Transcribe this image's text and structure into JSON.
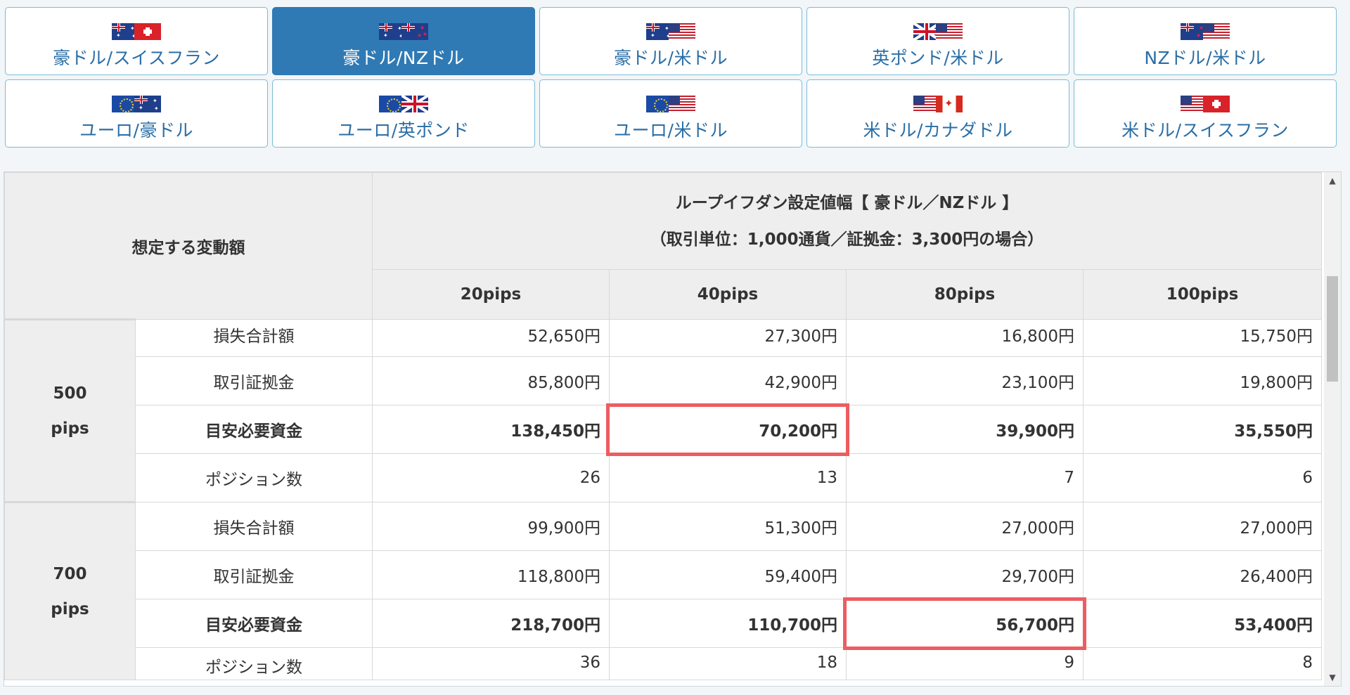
{
  "tabs": [
    {
      "label": "豪ドル/スイスフラン",
      "flags": [
        "au",
        "ch"
      ],
      "active": false
    },
    {
      "label": "豪ドル/NZドル",
      "flags": [
        "au",
        "nz"
      ],
      "active": true
    },
    {
      "label": "豪ドル/米ドル",
      "flags": [
        "au",
        "us"
      ],
      "active": false
    },
    {
      "label": "英ポンド/米ドル",
      "flags": [
        "gb",
        "us"
      ],
      "active": false
    },
    {
      "label": "NZドル/米ドル",
      "flags": [
        "nz",
        "us"
      ],
      "active": false
    },
    {
      "label": "ユーロ/豪ドル",
      "flags": [
        "eu",
        "au"
      ],
      "active": false
    },
    {
      "label": "ユーロ/英ポンド",
      "flags": [
        "eu",
        "gb"
      ],
      "active": false
    },
    {
      "label": "ユーロ/米ドル",
      "flags": [
        "eu",
        "us"
      ],
      "active": false
    },
    {
      "label": "米ドル/カナダドル",
      "flags": [
        "us",
        "ca"
      ],
      "active": false
    },
    {
      "label": "米ドル/スイスフラン",
      "flags": [
        "us",
        "ch"
      ],
      "active": false
    }
  ],
  "table": {
    "corner": "想定する変動額",
    "title_line1": "ループイフダン設定値幅【 豪ドル／NZドル 】",
    "title_line2": "（取引単位：1,000通貨／証拠金：3,300円の場合）",
    "columns": [
      "20pips",
      "40pips",
      "80pips",
      "100pips"
    ],
    "groups": [
      {
        "name_line1": "500",
        "name_line2": "pips",
        "rows": [
          {
            "label": "損失合計額",
            "values": [
              "52,650円",
              "27,300円",
              "16,800円",
              "15,750円"
            ]
          },
          {
            "label": "取引証拠金",
            "values": [
              "85,800円",
              "42,900円",
              "23,100円",
              "19,800円"
            ]
          },
          {
            "label": "目安必要資金",
            "values": [
              "138,450円",
              "70,200円",
              "39,900円",
              "35,550円"
            ]
          },
          {
            "label": "ポジション数",
            "values": [
              "26",
              "13",
              "7",
              "6"
            ]
          }
        ]
      },
      {
        "name_line1": "700",
        "name_line2": "pips",
        "rows": [
          {
            "label": "損失合計額",
            "values": [
              "99,900円",
              "51,300円",
              "27,000円",
              "27,000円"
            ]
          },
          {
            "label": "取引証拠金",
            "values": [
              "118,800円",
              "59,400円",
              "29,700円",
              "26,400円"
            ]
          },
          {
            "label": "目安必要資金",
            "values": [
              "218,700円",
              "110,700円",
              "56,700円",
              "53,400円"
            ]
          },
          {
            "label": "ポジション数",
            "values": [
              "36",
              "18",
              "9",
              "8"
            ]
          }
        ]
      }
    ]
  },
  "colors": {
    "active_tab": "#2f7ab5",
    "tab_border": "#7cbad7",
    "highlight": "#ec5d62"
  },
  "scrollbar": {
    "up": "▲",
    "down": "▼"
  }
}
